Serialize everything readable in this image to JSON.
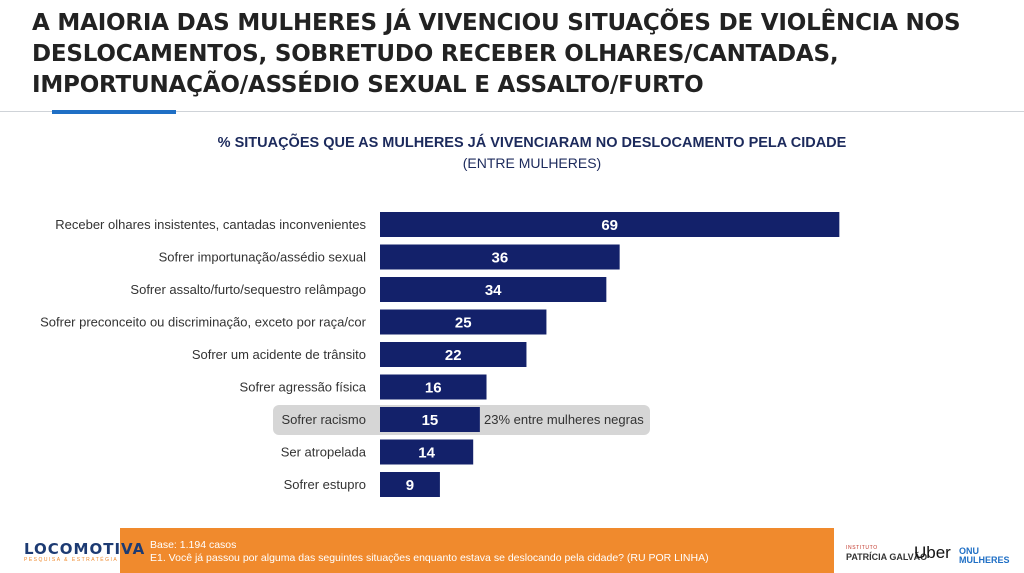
{
  "header": {
    "title_lines": [
      "A MAIORIA DAS MULHERES JÁ VIVENCIOU SITUAÇÕES DE VIOLÊNCIA NOS",
      "DESLOCAMENTOS, SOBRETUDO RECEBER OLHARES/CANTADAS,",
      "IMPORTUNAÇÃO/ASSÉDIO SEXUAL E ASSALTO/FURTO"
    ]
  },
  "chart_data": {
    "type": "bar",
    "orientation": "horizontal",
    "title": "% SITUAÇÕES QUE AS MULHERES JÁ VIVENCIARAM NO DESLOCAMENTO PELA CIDADE",
    "subtitle": "(ENTRE MULHERES)",
    "categories": [
      "Receber olhares insistentes, cantadas inconvenientes",
      "Sofrer importunação/assédio sexual",
      "Sofrer assalto/furto/sequestro relâmpago",
      "Sofrer preconceito ou discriminação, exceto por raça/cor",
      "Sofrer um acidente de trânsito",
      "Sofrer agressão física",
      "Sofrer racismo",
      "Ser atropelada",
      "Sofrer estupro"
    ],
    "values": [
      69,
      36,
      34,
      25,
      22,
      16,
      15,
      14,
      9
    ],
    "xlim": [
      0,
      70
    ],
    "grid": false,
    "bar_color": "#13216a",
    "highlight": {
      "category": "Sofrer racismo",
      "note": "23% entre mulheres negras"
    }
  },
  "footer": {
    "base": "Base: 1.194 casos",
    "question": "E1. Você já passou por alguma das seguintes situações enquanto estava se deslocando pela cidade? (RU POR LINHA)",
    "accent_color": "#f08a2d"
  },
  "logos": {
    "locomotiva": "LOCOMOTIVA",
    "locomotiva_tagline": "PESQUISA & ESTRATÉGIA",
    "ipg_small": "INSTITUTO",
    "ipg_name": "PATRÍCIA GALVÃO",
    "uber": "Uber",
    "onu_line1": "ONU",
    "onu_line2": "MULHERES"
  }
}
